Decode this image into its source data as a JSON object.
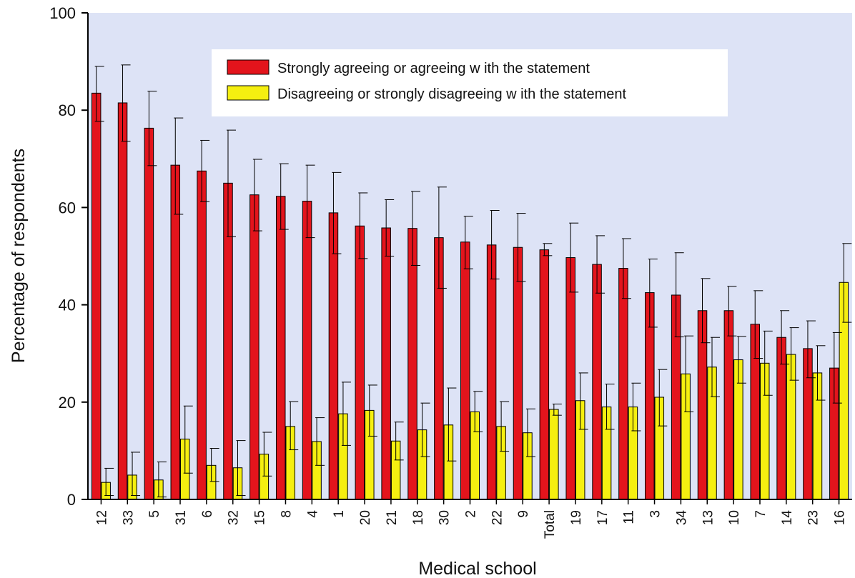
{
  "chart_data": {
    "type": "bar",
    "xlabel": "Medical school",
    "ylabel": "Percentage of respondents",
    "ylim": [
      0,
      100
    ],
    "yticks": [
      0,
      20,
      40,
      60,
      80,
      100
    ],
    "grid": false,
    "legend_position": "top-center",
    "background_color": "#dde3f6",
    "categories": [
      "12",
      "33",
      "5",
      "31",
      "6",
      "32",
      "15",
      "8",
      "4",
      "1",
      "20",
      "21",
      "18",
      "30",
      "2",
      "22",
      "9",
      "Total",
      "19",
      "17",
      "11",
      "3",
      "34",
      "13",
      "10",
      "7",
      "14",
      "23",
      "16"
    ],
    "series": [
      {
        "name": "Strongly agreeing or agreeing w ith the statement",
        "color": "#e3141c",
        "values": [
          83.5,
          81.5,
          76.3,
          68.7,
          67.5,
          65.0,
          62.6,
          62.3,
          61.3,
          58.9,
          56.2,
          55.8,
          55.7,
          53.8,
          52.9,
          52.3,
          51.8,
          51.3,
          49.7,
          48.3,
          47.5,
          42.5,
          42.0,
          38.8,
          38.8,
          36.0,
          33.3,
          31.0,
          27.0
        ],
        "err_low": [
          77.7,
          73.6,
          68.6,
          58.6,
          61.2,
          54.0,
          55.2,
          55.5,
          53.8,
          50.5,
          49.5,
          50.0,
          48.1,
          43.4,
          47.4,
          45.3,
          44.8,
          50.1,
          42.6,
          42.4,
          41.3,
          35.4,
          33.4,
          32.2,
          33.6,
          29.0,
          27.8,
          25.0,
          19.8
        ],
        "err_high": [
          89.0,
          89.3,
          83.9,
          78.4,
          73.8,
          75.9,
          69.9,
          69.0,
          68.7,
          67.2,
          63.0,
          61.6,
          63.3,
          64.2,
          58.2,
          59.4,
          58.8,
          52.6,
          56.8,
          54.2,
          53.6,
          49.4,
          50.7,
          45.4,
          43.8,
          42.9,
          38.8,
          36.7,
          34.3
        ]
      },
      {
        "name": "Disagreeing or strongly disagreeing w ith the statement",
        "color": "#f5ef10",
        "values": [
          3.5,
          5.0,
          4.0,
          12.4,
          7.0,
          6.5,
          9.3,
          15.0,
          11.9,
          17.6,
          18.3,
          12.0,
          14.3,
          15.3,
          18.0,
          15.0,
          13.7,
          18.5,
          20.3,
          19.0,
          19.0,
          21.0,
          25.8,
          27.2,
          28.7,
          28.0,
          29.8,
          26.0,
          44.6
        ],
        "err_low": [
          0.8,
          0.8,
          0.5,
          5.4,
          3.7,
          0.8,
          4.8,
          10.2,
          7.0,
          11.1,
          13.0,
          8.1,
          8.8,
          7.9,
          13.9,
          9.9,
          8.8,
          17.3,
          14.4,
          14.4,
          14.1,
          15.1,
          18.0,
          21.1,
          23.9,
          21.4,
          24.5,
          20.4,
          36.4
        ],
        "err_high": [
          6.4,
          9.7,
          7.7,
          19.2,
          10.5,
          12.1,
          13.8,
          20.1,
          16.8,
          24.1,
          23.5,
          15.9,
          19.8,
          22.9,
          22.2,
          20.1,
          18.6,
          19.6,
          26.0,
          23.7,
          23.9,
          26.7,
          33.6,
          33.3,
          33.5,
          34.6,
          35.3,
          31.6,
          52.6
        ]
      }
    ]
  }
}
